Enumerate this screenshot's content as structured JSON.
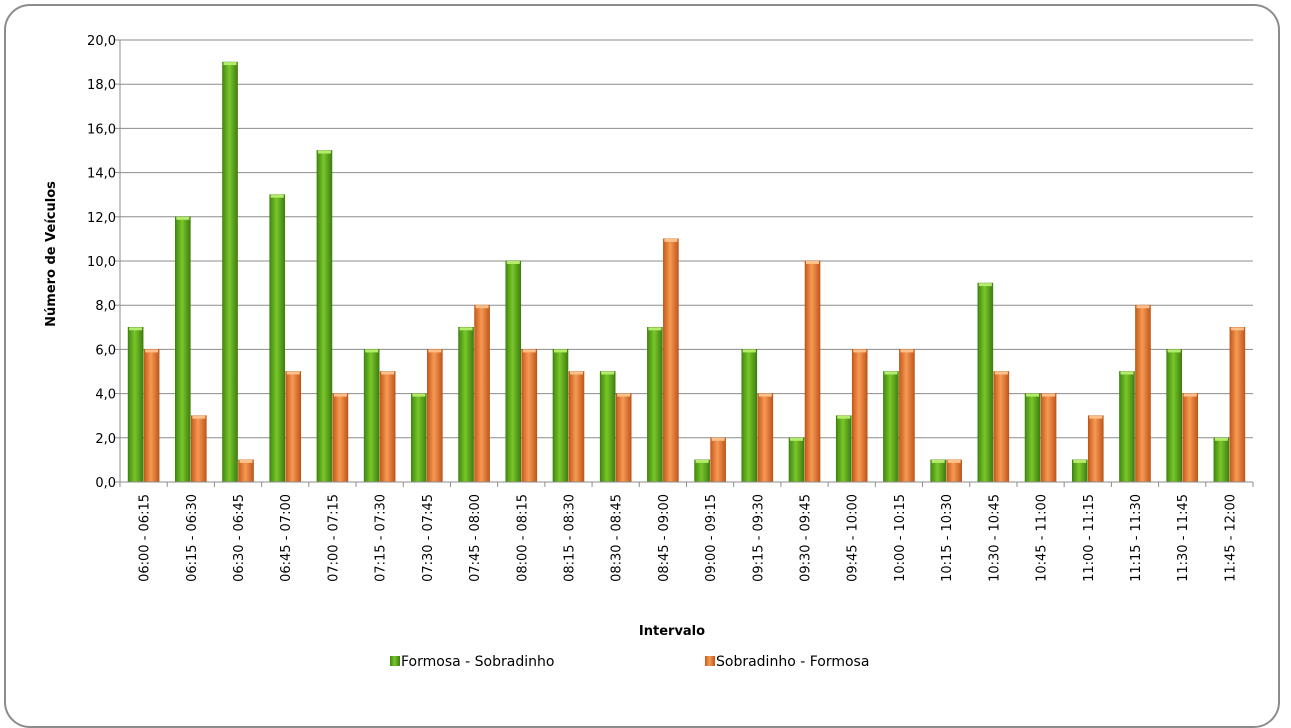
{
  "chart_data": {
    "type": "bar",
    "xlabel": "Intervalo",
    "ylabel": "Número de Veículos",
    "ylim": [
      0,
      20
    ],
    "ytick_step": 2,
    "ytick_labels": [
      "0,0",
      "2,0",
      "4,0",
      "6,0",
      "8,0",
      "10,0",
      "12,0",
      "14,0",
      "16,0",
      "18,0",
      "20,0"
    ],
    "grid": true,
    "legend_position": "bottom",
    "categories": [
      "06:00 - 06:15",
      "06:15 - 06:30",
      "06:30 - 06:45",
      "06:45 - 07:00",
      "07:00 - 07:15",
      "07:15 - 07:30",
      "07:30 - 07:45",
      "07:45 - 08:00",
      "08:00 - 08:15",
      "08:15 - 08:30",
      "08:30 - 08:45",
      "08:45 - 09:00",
      "09:00 - 09:15",
      "09:15 - 09:30",
      "09:30 - 09:45",
      "09:45 - 10:00",
      "10:00 - 10:15",
      "10:15 - 10:30",
      "10:30 - 10:45",
      "10:45 - 11:00",
      "11:00 - 11:15",
      "11:15 - 11:30",
      "11:30 - 11:45",
      "11:45 - 12:00"
    ],
    "series": [
      {
        "name": "Formosa - Sobradinho",
        "color": "#5aa619",
        "values": [
          7,
          12,
          19,
          13,
          15,
          6,
          4,
          7,
          10,
          6,
          5,
          7,
          1,
          6,
          2,
          3,
          5,
          1,
          9,
          4,
          1,
          5,
          6,
          2
        ]
      },
      {
        "name": "Sobradinho - Formosa",
        "color": "#e9752a",
        "values": [
          6,
          3,
          1,
          5,
          4,
          5,
          6,
          8,
          6,
          5,
          4,
          11,
          2,
          4,
          10,
          6,
          6,
          1,
          5,
          4,
          3,
          8,
          4,
          7
        ]
      }
    ]
  }
}
